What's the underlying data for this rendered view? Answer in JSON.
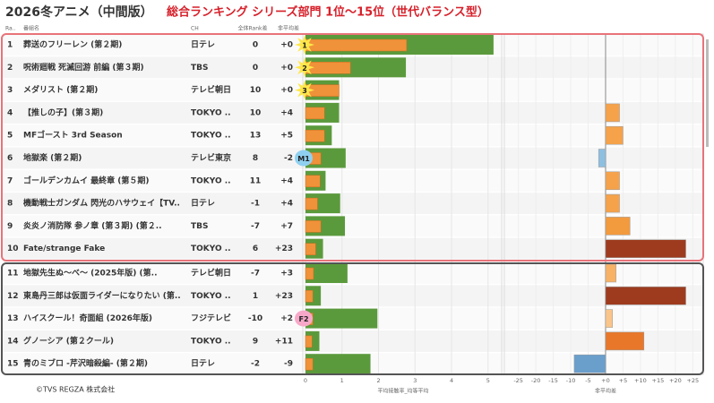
{
  "header": {
    "title_black": "2026冬アニメ（中間版）",
    "title_red": "総合ランキング シリーズ部門 1位～15位（世代バランス型）"
  },
  "columns": [
    "Ra..",
    "番組名",
    "CH",
    "全体Rank差",
    "非平均差"
  ],
  "rows": [
    {
      "rank": 1,
      "title": "葬送のフリーレン (第２期)",
      "ch": "日テレ",
      "rank_diff": 0,
      "diff": 0,
      "diff_label": "+0",
      "reach": 5.15,
      "reach2": 2.77,
      "badge": "1",
      "color": "#f5a24a"
    },
    {
      "rank": 2,
      "title": "呪術廻戦 死滅回游 前編 (第３期)",
      "ch": "TBS",
      "rank_diff": 0,
      "diff": 0,
      "diff_label": "+0",
      "reach": 2.75,
      "reach2": 1.23,
      "badge": "2",
      "color": "#f5a24a"
    },
    {
      "rank": 3,
      "title": "メダリスト (第２期)",
      "ch": "テレビ朝日",
      "rank_diff": 10,
      "diff": 0,
      "diff_label": "+0",
      "reach": 0.92,
      "reach2": 0.92,
      "badge": "3",
      "color": "#f5a24a"
    },
    {
      "rank": 4,
      "title": "【推しの子】(第３期)",
      "ch": "TOKYO ..",
      "rank_diff": 10,
      "diff": 4,
      "diff_label": "+4",
      "reach": 0.92,
      "reach2": 0.52,
      "badge": null,
      "color": "#f5a24a"
    },
    {
      "rank": 5,
      "title": "MFゴースト 3rd Season",
      "ch": "TOKYO ..",
      "rank_diff": 13,
      "diff": 5,
      "diff_label": "+5",
      "reach": 0.72,
      "reach2": 0.52,
      "badge": null,
      "color": "#f5a24a"
    },
    {
      "rank": 6,
      "title": "地獄楽 (第２期)",
      "ch": "テレビ東京",
      "rank_diff": 8,
      "diff": -2,
      "diff_label": "-2",
      "reach": 1.1,
      "reach2": 0.42,
      "badge": "M1",
      "color": "#8fbfe0"
    },
    {
      "rank": 7,
      "title": "ゴールデンカムイ 最終章 (第５期)",
      "ch": "TOKYO ..",
      "rank_diff": 11,
      "diff": 4,
      "diff_label": "+4",
      "reach": 0.55,
      "reach2": 0.4,
      "badge": null,
      "color": "#f5a24a"
    },
    {
      "rank": 8,
      "title": "機動戦士ガンダム 閃光のハサウェイ【TV..",
      "ch": "日テレ",
      "rank_diff": -1,
      "diff": 4,
      "diff_label": "+4",
      "reach": 0.95,
      "reach2": 0.33,
      "badge": null,
      "color": "#f5a24a"
    },
    {
      "rank": 9,
      "title": "炎炎ノ消防隊 参ノ章 (第３期) (第２..",
      "ch": "TBS",
      "rank_diff": -7,
      "diff": 7,
      "diff_label": "+7",
      "reach": 1.08,
      "reach2": 0.42,
      "badge": null,
      "color": "#f29a3e"
    },
    {
      "rank": 10,
      "title": "Fate/strange Fake",
      "ch": "TOKYO ..",
      "rank_diff": 6,
      "diff": 23,
      "diff_label": "+23",
      "reach": 0.48,
      "reach2": 0.28,
      "badge": null,
      "color": "#9e3b1f"
    },
    {
      "rank": 11,
      "title": "地獄先生ぬ～べ～ (2025年版) (第..",
      "ch": "テレビ朝日",
      "rank_diff": -7,
      "diff": 3,
      "diff_label": "+3",
      "reach": 1.15,
      "reach2": 0.22,
      "badge": null,
      "color": "#f7b266"
    },
    {
      "rank": 12,
      "title": "東島丹三郎は仮面ライダーになりたい (第..",
      "ch": "TOKYO ..",
      "rank_diff": 1,
      "diff": 23,
      "diff_label": "+23",
      "reach": 0.42,
      "reach2": 0.2,
      "badge": null,
      "color": "#9e3b1f"
    },
    {
      "rank": 13,
      "title": "ハイスクール！奇面組 (2026年版)",
      "ch": "フジテレビ",
      "rank_diff": -10,
      "diff": 2,
      "diff_label": "+2",
      "reach": 1.97,
      "reach2": 0.2,
      "badge": "F2",
      "color": "#f9c58a"
    },
    {
      "rank": 14,
      "title": "グノーシア (第２クール)",
      "ch": "TOKYO ..",
      "rank_diff": 9,
      "diff": 11,
      "diff_label": "+11",
      "reach": 0.38,
      "reach2": 0.18,
      "badge": null,
      "color": "#e8772a"
    },
    {
      "rank": 15,
      "title": "青のミブロ -芹沢暗殺編- (第２期)",
      "ch": "日テレ",
      "rank_diff": -2,
      "diff": -9,
      "diff_label": "-9",
      "reach": 1.78,
      "reach2": 0.2,
      "badge": null,
      "color": "#6a9fcc"
    }
  ],
  "left_axis": {
    "title": "平均接触率_均等平均",
    "xlim": [
      0,
      5.3
    ],
    "xticks": [
      0,
      1,
      2,
      3,
      4,
      5
    ],
    "color": "#5b9a3c",
    "color2": "#f0923a"
  },
  "right_axis": {
    "title": "非平均差",
    "xlim": [
      -28.5,
      28
    ],
    "xticks": [
      -25,
      -20,
      -15,
      -10,
      -5,
      {
        "value": 0,
        "label": "+0"
      },
      {
        "value": 5,
        "label": "+5"
      },
      {
        "value": 10,
        "label": "+10"
      },
      {
        "value": 15,
        "label": "+15"
      },
      {
        "value": 20,
        "label": "+20"
      },
      {
        "value": 25,
        "label": "+25"
      }
    ]
  },
  "footer": "©TVS REGZA 株式会社"
}
